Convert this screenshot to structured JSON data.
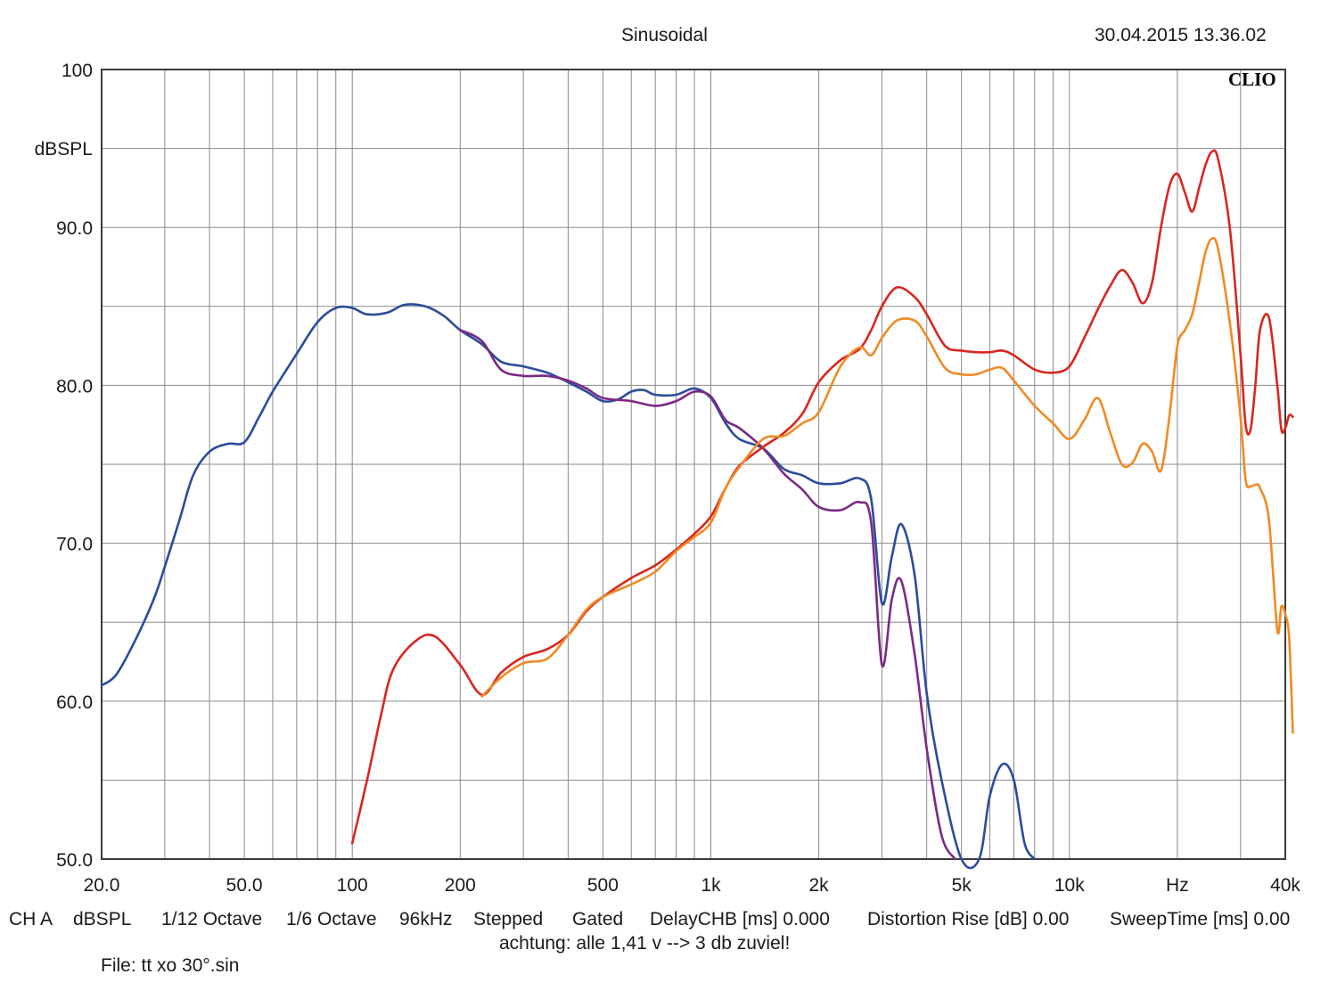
{
  "header": {
    "title": "Sinusoidal",
    "timestamp": "30.04.2015 13.36.02",
    "brand": "CLIO"
  },
  "footer": {
    "items": [
      "CH A",
      "dBSPL",
      "1/12 Octave",
      "1/6 Octave",
      "96kHz",
      "Stepped",
      "Gated",
      "DelayCHB [ms] 0.000",
      "Distortion Rise [dB] 0.00",
      "SweepTime [ms] 0.00"
    ],
    "note": "achtung: alle 1,41 v --> 3 db zuviel!",
    "file": "File: tt xo 30°.sin"
  },
  "chart_data": {
    "type": "line",
    "title": "Sinusoidal",
    "ylabel": "dBSPL",
    "xlabel": "Hz",
    "xscale": "log",
    "xlim": [
      20,
      40000
    ],
    "ylim": [
      50,
      100
    ],
    "grid": true,
    "y_ticks": [
      "50.0",
      "60.0",
      "70.0",
      "80.0",
      "90.0",
      "100"
    ],
    "y_unit_label": "dBSPL",
    "x_ticks": [
      {
        "value": 20,
        "label": "20.0"
      },
      {
        "value": 50,
        "label": "50.0"
      },
      {
        "value": 100,
        "label": "100"
      },
      {
        "value": 200,
        "label": "200"
      },
      {
        "value": 500,
        "label": "500"
      },
      {
        "value": 1000,
        "label": "1k"
      },
      {
        "value": 2000,
        "label": "2k"
      },
      {
        "value": 5000,
        "label": "5k"
      },
      {
        "value": 10000,
        "label": "10k"
      },
      {
        "value": 20000,
        "label": "Hz"
      },
      {
        "value": 40000,
        "label": "40k"
      }
    ],
    "series": [
      {
        "color": "#2a4c9c",
        "points": [
          [
            20,
            61
          ],
          [
            22,
            61.7
          ],
          [
            25,
            64
          ],
          [
            28,
            66.5
          ],
          [
            30,
            68.5
          ],
          [
            33,
            71.5
          ],
          [
            36,
            74.3
          ],
          [
            40,
            75.8
          ],
          [
            45,
            76.3
          ],
          [
            50,
            76.4
          ],
          [
            55,
            78
          ],
          [
            60,
            79.6
          ],
          [
            70,
            82
          ],
          [
            80,
            84
          ],
          [
            90,
            84.9
          ],
          [
            100,
            84.9
          ],
          [
            110,
            84.5
          ],
          [
            125,
            84.6
          ],
          [
            140,
            85.1
          ],
          [
            160,
            85
          ],
          [
            180,
            84.4
          ],
          [
            200,
            83.5
          ],
          [
            230,
            82.6
          ],
          [
            260,
            81.5
          ],
          [
            300,
            81.2
          ],
          [
            350,
            80.8
          ],
          [
            400,
            80.2
          ],
          [
            450,
            79.6
          ],
          [
            500,
            79
          ],
          [
            550,
            79.1
          ],
          [
            600,
            79.6
          ],
          [
            650,
            79.7
          ],
          [
            700,
            79.4
          ],
          [
            800,
            79.4
          ],
          [
            900,
            79.8
          ],
          [
            1000,
            79.2
          ],
          [
            1100,
            77.6
          ],
          [
            1200,
            76.6
          ],
          [
            1400,
            76
          ],
          [
            1600,
            74.7
          ],
          [
            1800,
            74.3
          ],
          [
            2000,
            73.8
          ],
          [
            2300,
            73.8
          ],
          [
            2600,
            74.1
          ],
          [
            2800,
            72.8
          ],
          [
            3000,
            66.2
          ],
          [
            3200,
            69.2
          ],
          [
            3400,
            71.2
          ],
          [
            3700,
            68
          ],
          [
            4000,
            60.5
          ],
          [
            4400,
            55
          ],
          [
            5000,
            50
          ],
          [
            5600,
            50
          ],
          [
            6000,
            54
          ],
          [
            6500,
            56
          ],
          [
            7000,
            55
          ],
          [
            7500,
            51
          ],
          [
            8000,
            50
          ]
        ]
      },
      {
        "color": "#7b2a85",
        "points": [
          [
            200,
            83.5
          ],
          [
            230,
            82.8
          ],
          [
            260,
            81
          ],
          [
            300,
            80.6
          ],
          [
            350,
            80.6
          ],
          [
            400,
            80.3
          ],
          [
            450,
            79.8
          ],
          [
            500,
            79.2
          ],
          [
            600,
            79
          ],
          [
            700,
            78.7
          ],
          [
            800,
            79
          ],
          [
            900,
            79.6
          ],
          [
            1000,
            79.3
          ],
          [
            1100,
            77.8
          ],
          [
            1200,
            77.3
          ],
          [
            1400,
            76
          ],
          [
            1600,
            74.4
          ],
          [
            1800,
            73.4
          ],
          [
            2000,
            72.3
          ],
          [
            2300,
            72.1
          ],
          [
            2600,
            72.6
          ],
          [
            2800,
            71.3
          ],
          [
            3000,
            62.3
          ],
          [
            3200,
            66.5
          ],
          [
            3400,
            67.6
          ],
          [
            3700,
            63
          ],
          [
            4000,
            57
          ],
          [
            4400,
            51.5
          ],
          [
            4800,
            50
          ]
        ]
      },
      {
        "color": "#d9261f",
        "points": [
          [
            100,
            51
          ],
          [
            110,
            55
          ],
          [
            120,
            59
          ],
          [
            130,
            62
          ],
          [
            150,
            63.8
          ],
          [
            170,
            64.1
          ],
          [
            200,
            62.3
          ],
          [
            230,
            60.4
          ],
          [
            260,
            61.8
          ],
          [
            300,
            62.8
          ],
          [
            350,
            63.3
          ],
          [
            400,
            64.2
          ],
          [
            450,
            65.7
          ],
          [
            500,
            66.6
          ],
          [
            600,
            67.8
          ],
          [
            700,
            68.6
          ],
          [
            800,
            69.6
          ],
          [
            900,
            70.6
          ],
          [
            1000,
            71.7
          ],
          [
            1100,
            73.5
          ],
          [
            1200,
            74.9
          ],
          [
            1400,
            76.1
          ],
          [
            1600,
            77
          ],
          [
            1800,
            78.2
          ],
          [
            2000,
            80.2
          ],
          [
            2300,
            81.6
          ],
          [
            2600,
            82.3
          ],
          [
            2800,
            83.5
          ],
          [
            3000,
            85
          ],
          [
            3300,
            86.2
          ],
          [
            3700,
            85.6
          ],
          [
            4000,
            84.5
          ],
          [
            4500,
            82.5
          ],
          [
            5000,
            82.2
          ],
          [
            5500,
            82.1
          ],
          [
            6000,
            82.1
          ],
          [
            6500,
            82.2
          ],
          [
            7000,
            81.9
          ],
          [
            8000,
            81
          ],
          [
            9000,
            80.8
          ],
          [
            10000,
            81.2
          ],
          [
            11000,
            83
          ],
          [
            12000,
            84.8
          ],
          [
            13000,
            86.3
          ],
          [
            14000,
            87.3
          ],
          [
            15000,
            86.5
          ],
          [
            16000,
            85.2
          ],
          [
            17000,
            86.5
          ],
          [
            18000,
            90
          ],
          [
            19000,
            92.6
          ],
          [
            20000,
            93.4
          ],
          [
            21000,
            92.2
          ],
          [
            22000,
            91
          ],
          [
            23000,
            92.5
          ],
          [
            24000,
            94
          ],
          [
            25000,
            94.8
          ],
          [
            26000,
            94.3
          ],
          [
            28000,
            90
          ],
          [
            30000,
            82
          ],
          [
            31000,
            77.5
          ],
          [
            32000,
            77.2
          ],
          [
            33000,
            80
          ],
          [
            34000,
            83.5
          ],
          [
            36000,
            84.3
          ],
          [
            38000,
            80
          ],
          [
            39000,
            77.2
          ],
          [
            40000,
            77.3
          ],
          [
            41000,
            78.1
          ],
          [
            42000,
            78
          ]
        ]
      },
      {
        "color": "#f08a24",
        "points": [
          [
            230,
            60.3
          ],
          [
            260,
            61.5
          ],
          [
            300,
            62.4
          ],
          [
            350,
            62.7
          ],
          [
            400,
            64.2
          ],
          [
            450,
            65.8
          ],
          [
            500,
            66.6
          ],
          [
            600,
            67.4
          ],
          [
            700,
            68.2
          ],
          [
            800,
            69.5
          ],
          [
            900,
            70.4
          ],
          [
            1000,
            71.3
          ],
          [
            1100,
            73.5
          ],
          [
            1200,
            74.8
          ],
          [
            1400,
            76.6
          ],
          [
            1600,
            76.8
          ],
          [
            1800,
            77.6
          ],
          [
            2000,
            78.3
          ],
          [
            2300,
            81.2
          ],
          [
            2600,
            82.4
          ],
          [
            2800,
            81.9
          ],
          [
            3000,
            83
          ],
          [
            3300,
            84.1
          ],
          [
            3700,
            84.1
          ],
          [
            4000,
            83.1
          ],
          [
            4500,
            81.1
          ],
          [
            5000,
            80.7
          ],
          [
            5500,
            80.7
          ],
          [
            6000,
            81
          ],
          [
            6500,
            81.1
          ],
          [
            7000,
            80.3
          ],
          [
            8000,
            78.7
          ],
          [
            9000,
            77.6
          ],
          [
            10000,
            76.6
          ],
          [
            11000,
            77.8
          ],
          [
            12000,
            79.2
          ],
          [
            13000,
            77
          ],
          [
            14000,
            75
          ],
          [
            15000,
            75.1
          ],
          [
            16000,
            76.3
          ],
          [
            17000,
            75.8
          ],
          [
            18000,
            74.6
          ],
          [
            19000,
            78
          ],
          [
            20000,
            82.5
          ],
          [
            21000,
            83.5
          ],
          [
            22000,
            84.5
          ],
          [
            23000,
            86.5
          ],
          [
            24000,
            88.5
          ],
          [
            25000,
            89.3
          ],
          [
            26000,
            88.6
          ],
          [
            28000,
            84
          ],
          [
            30000,
            78
          ],
          [
            31000,
            74
          ],
          [
            32000,
            73.6
          ],
          [
            33000,
            73.7
          ],
          [
            34000,
            73.5
          ],
          [
            36000,
            71.5
          ],
          [
            38000,
            64.5
          ],
          [
            39000,
            66
          ],
          [
            40000,
            65.5
          ],
          [
            41000,
            64
          ],
          [
            42000,
            58
          ]
        ]
      }
    ]
  }
}
